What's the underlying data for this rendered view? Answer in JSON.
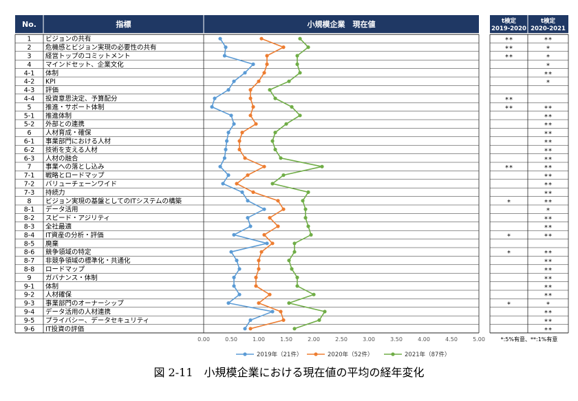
{
  "caption": "図 2-11　小規模企業における現在値の平均の経年変化",
  "table": {
    "no_header": "No.",
    "item_header": "指標",
    "chart_header": "小規模企業　現在値",
    "t_headers": [
      {
        "line1": "t検定",
        "line2": "2019-2020"
      },
      {
        "line1": "t検定",
        "line2": "2020-2021"
      }
    ],
    "footnote": "*:5%有意、**:1%有意"
  },
  "colors": {
    "header_bg": "#1f3864",
    "series_2019": "#5b9bd5",
    "series_2020": "#ed7d31",
    "series_2021": "#70ad47"
  },
  "chart_data": {
    "type": "line",
    "orientation": "horizontal",
    "title": "小規模企業　現在値",
    "xlim": [
      0,
      5
    ],
    "x_ticks": [
      "0.00",
      "0.50",
      "1.00",
      "1.50",
      "2.00",
      "2.50",
      "3.00",
      "3.50",
      "4.00",
      "4.50",
      "5.00"
    ],
    "legend_position": "bottom",
    "grid": true,
    "categories": [
      {
        "no": "1",
        "label": "ビジョンの共有"
      },
      {
        "no": "2",
        "label": "危機感とビジョン実現の必要性の共有"
      },
      {
        "no": "3",
        "label": "経営トップのコミットメント"
      },
      {
        "no": "4",
        "label": "マインドセット、企業文化"
      },
      {
        "no": "4-1",
        "label": "体制"
      },
      {
        "no": "4-2",
        "label": "KPI"
      },
      {
        "no": "4-3",
        "label": "評価"
      },
      {
        "no": "4-4",
        "label": "投資意思決定、予算配分"
      },
      {
        "no": "5",
        "label": "推進・サポート体制"
      },
      {
        "no": "5-1",
        "label": "推進体制"
      },
      {
        "no": "5-2",
        "label": "外部との連携"
      },
      {
        "no": "6",
        "label": "人材育成・確保"
      },
      {
        "no": "6-1",
        "label": "事業部門における人材"
      },
      {
        "no": "6-2",
        "label": "技術を支える人材"
      },
      {
        "no": "6-3",
        "label": "人材の融合"
      },
      {
        "no": "7",
        "label": "事業への落とし込み"
      },
      {
        "no": "7-1",
        "label": "戦略とロードマップ"
      },
      {
        "no": "7-2",
        "label": "バリューチェーンワイド"
      },
      {
        "no": "7-3",
        "label": "持続力"
      },
      {
        "no": "8",
        "label": "ビジョン実現の基盤としてのITシステムの構築"
      },
      {
        "no": "8-1",
        "label": "データ活用"
      },
      {
        "no": "8-2",
        "label": "スピード・アジリティ"
      },
      {
        "no": "8-3",
        "label": "全社最適"
      },
      {
        "no": "8-4",
        "label": "IT資産の分析・評価"
      },
      {
        "no": "8-5",
        "label": "廃棄"
      },
      {
        "no": "8-6",
        "label": "競争領域の特定"
      },
      {
        "no": "8-7",
        "label": "非競争領域の標準化・共通化"
      },
      {
        "no": "8-8",
        "label": "ロードマップ"
      },
      {
        "no": "9",
        "label": "ガバナンス・体制"
      },
      {
        "no": "9-1",
        "label": "体制"
      },
      {
        "no": "9-2",
        "label": "人材確保"
      },
      {
        "no": "9-3",
        "label": "事業部門のオーナーシップ"
      },
      {
        "no": "9-4",
        "label": "データ活用の人材連携"
      },
      {
        "no": "9-5",
        "label": "プライバシー、データセキュリティ"
      },
      {
        "no": "9-6",
        "label": "IT投資の評価"
      }
    ],
    "series": [
      {
        "name": "2019年（21件）",
        "color": "#5b9bd5",
        "values": [
          0.3,
          0.4,
          0.38,
          0.9,
          0.75,
          0.55,
          0.45,
          0.2,
          0.15,
          0.5,
          0.55,
          0.45,
          0.42,
          0.4,
          0.38,
          0.3,
          0.45,
          0.35,
          0.7,
          0.8,
          1.1,
          0.8,
          0.85,
          0.55,
          1.15,
          0.5,
          0.6,
          0.65,
          0.55,
          0.55,
          0.65,
          0.45,
          1.25,
          0.85,
          0.75
        ]
      },
      {
        "name": "2020年（52件）",
        "color": "#ed7d31",
        "values": [
          1.05,
          1.45,
          1.15,
          1.15,
          1.1,
          1.0,
          0.85,
          0.85,
          0.9,
          0.85,
          0.95,
          0.7,
          0.65,
          0.65,
          0.75,
          1.1,
          0.8,
          0.6,
          0.9,
          1.35,
          1.45,
          1.2,
          1.35,
          1.1,
          1.25,
          1.05,
          1.0,
          1.0,
          0.95,
          0.95,
          1.2,
          1.0,
          1.4,
          1.45,
          0.85
        ]
      },
      {
        "name": "2021年（87件）",
        "color": "#70ad47",
        "values": [
          1.75,
          1.9,
          1.7,
          1.7,
          1.75,
          1.55,
          1.2,
          1.3,
          1.6,
          1.75,
          1.5,
          1.3,
          1.25,
          1.3,
          1.4,
          2.15,
          1.45,
          1.25,
          1.9,
          1.8,
          1.85,
          1.85,
          1.9,
          1.95,
          1.65,
          1.65,
          1.55,
          1.6,
          1.7,
          1.7,
          2.0,
          1.55,
          2.2,
          2.1,
          1.65
        ]
      }
    ],
    "ttest_2019_2020": [
      "**",
      "**",
      "**",
      "",
      "",
      "",
      "",
      "**",
      "**",
      "",
      "",
      "",
      "",
      "",
      "",
      "**",
      "",
      "",
      "",
      "*",
      "",
      "",
      "",
      "*",
      "",
      "*",
      "",
      "",
      "",
      "",
      "",
      "*",
      "",
      "",
      ""
    ],
    "ttest_2020_2021": [
      "**",
      "*",
      "*",
      "*",
      "**",
      "*",
      "",
      "",
      "**",
      "**",
      "**",
      "**",
      "**",
      "**",
      "**",
      "**",
      "**",
      "**",
      "**",
      "**",
      "*",
      "**",
      "**",
      "**",
      "",
      "**",
      "**",
      "**",
      "**",
      "**",
      "**",
      "*",
      "**",
      "**",
      "**"
    ]
  }
}
